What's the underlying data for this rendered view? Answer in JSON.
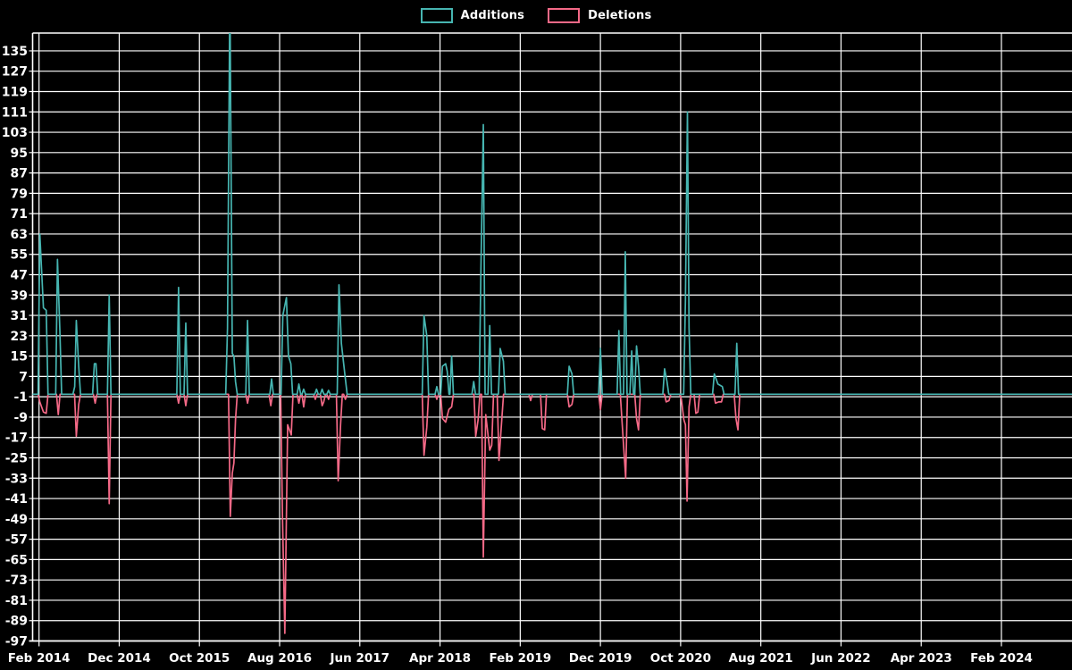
{
  "legend": {
    "additions_label": "Additions",
    "deletions_label": "Deletions"
  },
  "colors": {
    "background": "#000000",
    "grid": "#ffffff",
    "text": "#ffffff",
    "additions": "#46b5b1",
    "deletions": "#f56987"
  },
  "chart_data": {
    "type": "line",
    "title": "",
    "xlabel": "",
    "ylabel": "",
    "grid": true,
    "legend_position": "top-center",
    "x_axis": {
      "months_origin": "2014-01",
      "range_months": [
        0.2,
        129.8
      ],
      "tick_months": [
        1,
        11,
        21,
        31,
        41,
        51,
        61,
        71,
        81,
        91,
        101,
        111,
        121
      ],
      "tick_labels": [
        "Feb 2014",
        "Dec 2014",
        "Oct 2015",
        "Aug 2016",
        "Jun 2017",
        "Apr 2018",
        "Feb 2019",
        "Dec 2019",
        "Oct 2020",
        "Aug 2021",
        "Jun 2022",
        "Apr 2023",
        "Feb 2024"
      ]
    },
    "y_axis": {
      "range": [
        -97,
        142
      ],
      "ticks": [
        135,
        127,
        119,
        111,
        103,
        95,
        87,
        79,
        71,
        63,
        55,
        47,
        39,
        31,
        23,
        15,
        7,
        -1,
        -9,
        -17,
        -25,
        -33,
        -41,
        -49,
        -57,
        -65,
        -73,
        -81,
        -89,
        -97
      ]
    },
    "baseline": 0,
    "series": [
      {
        "name": "Additions",
        "color": "#46b5b1",
        "spikes": [
          [
            1.1,
            63
          ],
          [
            1.55,
            34
          ],
          [
            1.9,
            33
          ],
          [
            3.3,
            53
          ],
          [
            3.6,
            25
          ],
          [
            5.45,
            3
          ],
          [
            5.65,
            29
          ],
          [
            5.95,
            11
          ],
          [
            7.9,
            12
          ],
          [
            8.1,
            12
          ],
          [
            9.75,
            39
          ],
          [
            18.4,
            42
          ],
          [
            19.3,
            28
          ],
          [
            24.5,
            26
          ],
          [
            24.8,
            160
          ],
          [
            25.1,
            16
          ],
          [
            25.3,
            15
          ],
          [
            25.5,
            5
          ],
          [
            27,
            29
          ],
          [
            30,
            6
          ],
          [
            31.4,
            31
          ],
          [
            31.85,
            38
          ],
          [
            32.1,
            15
          ],
          [
            32.4,
            12
          ],
          [
            33.4,
            4
          ],
          [
            34,
            2
          ],
          [
            35.6,
            2
          ],
          [
            36.3,
            2
          ],
          [
            37.1,
            1.5
          ],
          [
            38.4,
            43
          ],
          [
            38.7,
            20
          ],
          [
            39.2,
            6
          ],
          [
            49,
            31
          ],
          [
            49.35,
            23
          ],
          [
            50.6,
            3
          ],
          [
            51.3,
            11
          ],
          [
            51.7,
            12
          ],
          [
            51.9,
            9
          ],
          [
            52.45,
            15
          ],
          [
            55.2,
            5
          ],
          [
            56.1,
            49
          ],
          [
            56.4,
            106
          ],
          [
            57.2,
            27
          ],
          [
            58.5,
            18
          ],
          [
            58.9,
            13
          ],
          [
            67.1,
            11
          ],
          [
            67.45,
            8
          ],
          [
            71,
            18
          ],
          [
            73.3,
            25
          ],
          [
            74.1,
            56
          ],
          [
            74.9,
            17
          ],
          [
            75.5,
            19
          ],
          [
            75.75,
            11
          ],
          [
            79,
            10
          ],
          [
            79.3,
            5
          ],
          [
            81.6,
            37
          ],
          [
            81.85,
            111
          ],
          [
            82.05,
            26
          ],
          [
            85.2,
            8
          ],
          [
            85.65,
            4
          ],
          [
            86.2,
            3
          ],
          [
            88,
            20
          ]
        ]
      },
      {
        "name": "Deletions",
        "color": "#f56987",
        "spikes": [
          [
            1.1,
            -3
          ],
          [
            1.55,
            -7
          ],
          [
            1.9,
            -7.5
          ],
          [
            3.4,
            -8
          ],
          [
            5.65,
            -16.5
          ],
          [
            5.95,
            -4
          ],
          [
            8,
            -3.5
          ],
          [
            9.75,
            -43
          ],
          [
            18.4,
            -3.5
          ],
          [
            19.3,
            -4.5
          ],
          [
            24.85,
            -48
          ],
          [
            25.1,
            -31
          ],
          [
            25.3,
            -27
          ],
          [
            25.5,
            -10
          ],
          [
            27,
            -3.5
          ],
          [
            29.9,
            -4.5
          ],
          [
            31.35,
            -47
          ],
          [
            31.65,
            -94
          ],
          [
            32,
            -12
          ],
          [
            32.45,
            -16
          ],
          [
            33.4,
            -3.5
          ],
          [
            34,
            -5
          ],
          [
            35.45,
            -2
          ],
          [
            36.3,
            -4.5
          ],
          [
            36.5,
            -3
          ],
          [
            37.1,
            -2
          ],
          [
            38.3,
            -34
          ],
          [
            38.6,
            -12
          ],
          [
            39.2,
            -2
          ],
          [
            49,
            -24
          ],
          [
            49.35,
            -13
          ],
          [
            50.6,
            -2
          ],
          [
            51.3,
            -9.5
          ],
          [
            51.7,
            -11
          ],
          [
            52.1,
            -6
          ],
          [
            52.45,
            -5
          ],
          [
            55.45,
            -16.5
          ],
          [
            55.75,
            -10
          ],
          [
            56.4,
            -64
          ],
          [
            56.7,
            -8
          ],
          [
            57.2,
            -22
          ],
          [
            57.45,
            -20
          ],
          [
            58.35,
            -26
          ],
          [
            58.7,
            -10
          ],
          [
            62.3,
            -2.5
          ],
          [
            63.75,
            -13.5
          ],
          [
            64.05,
            -14
          ],
          [
            67.1,
            -5
          ],
          [
            67.45,
            -4
          ],
          [
            71,
            -6
          ],
          [
            73.7,
            -11
          ],
          [
            74.15,
            -33
          ],
          [
            75.5,
            -9.5
          ],
          [
            75.75,
            -14
          ],
          [
            79.2,
            -3
          ],
          [
            79.55,
            -2.5
          ],
          [
            81.1,
            -2
          ],
          [
            81.4,
            -10
          ],
          [
            81.6,
            -12
          ],
          [
            81.8,
            -42
          ],
          [
            82.05,
            -5
          ],
          [
            82.9,
            -7.5
          ],
          [
            83.15,
            -7
          ],
          [
            85.35,
            -3.5
          ],
          [
            85.75,
            -3
          ],
          [
            86.1,
            -3
          ],
          [
            87.9,
            -9.5
          ],
          [
            88.15,
            -14
          ]
        ]
      }
    ]
  }
}
